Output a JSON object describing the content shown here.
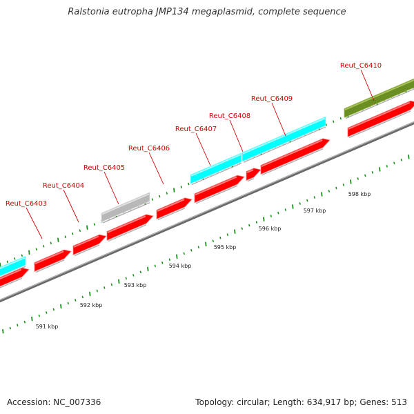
{
  "title": "Ralstonia eutropha JMP134 megaplasmid, complete sequence",
  "footer": {
    "accession": "Accession: NC_007336",
    "topology": "Topology: circular; Length: 634,917 bp; Genes: 513"
  },
  "colors": {
    "cds": "#ff0000",
    "cds_light": "#ff8080",
    "cyan": "#00ffff",
    "cyan_light": "#aaffff",
    "grey": "#b8b8b8",
    "grey_light": "#e2e2e2",
    "olive": "#6b8e23",
    "olive_light": "#a6c15a",
    "backbone": "#8c8c8c",
    "tick": "#1a8f1a",
    "label": "#d60000"
  },
  "gene_labels": [
    "Reut_C6403",
    "Reut_C6404",
    "Reut_C6405",
    "Reut_C6406",
    "Reut_C6407",
    "Reut_C6408",
    "Reut_C6409",
    "Reut_C6410"
  ],
  "scale_labels": [
    "591 kbp",
    "592 kbp",
    "593 kbp",
    "594 kbp",
    "595 kbp",
    "596 kbp",
    "597 kbp",
    "598 kbp"
  ]
}
